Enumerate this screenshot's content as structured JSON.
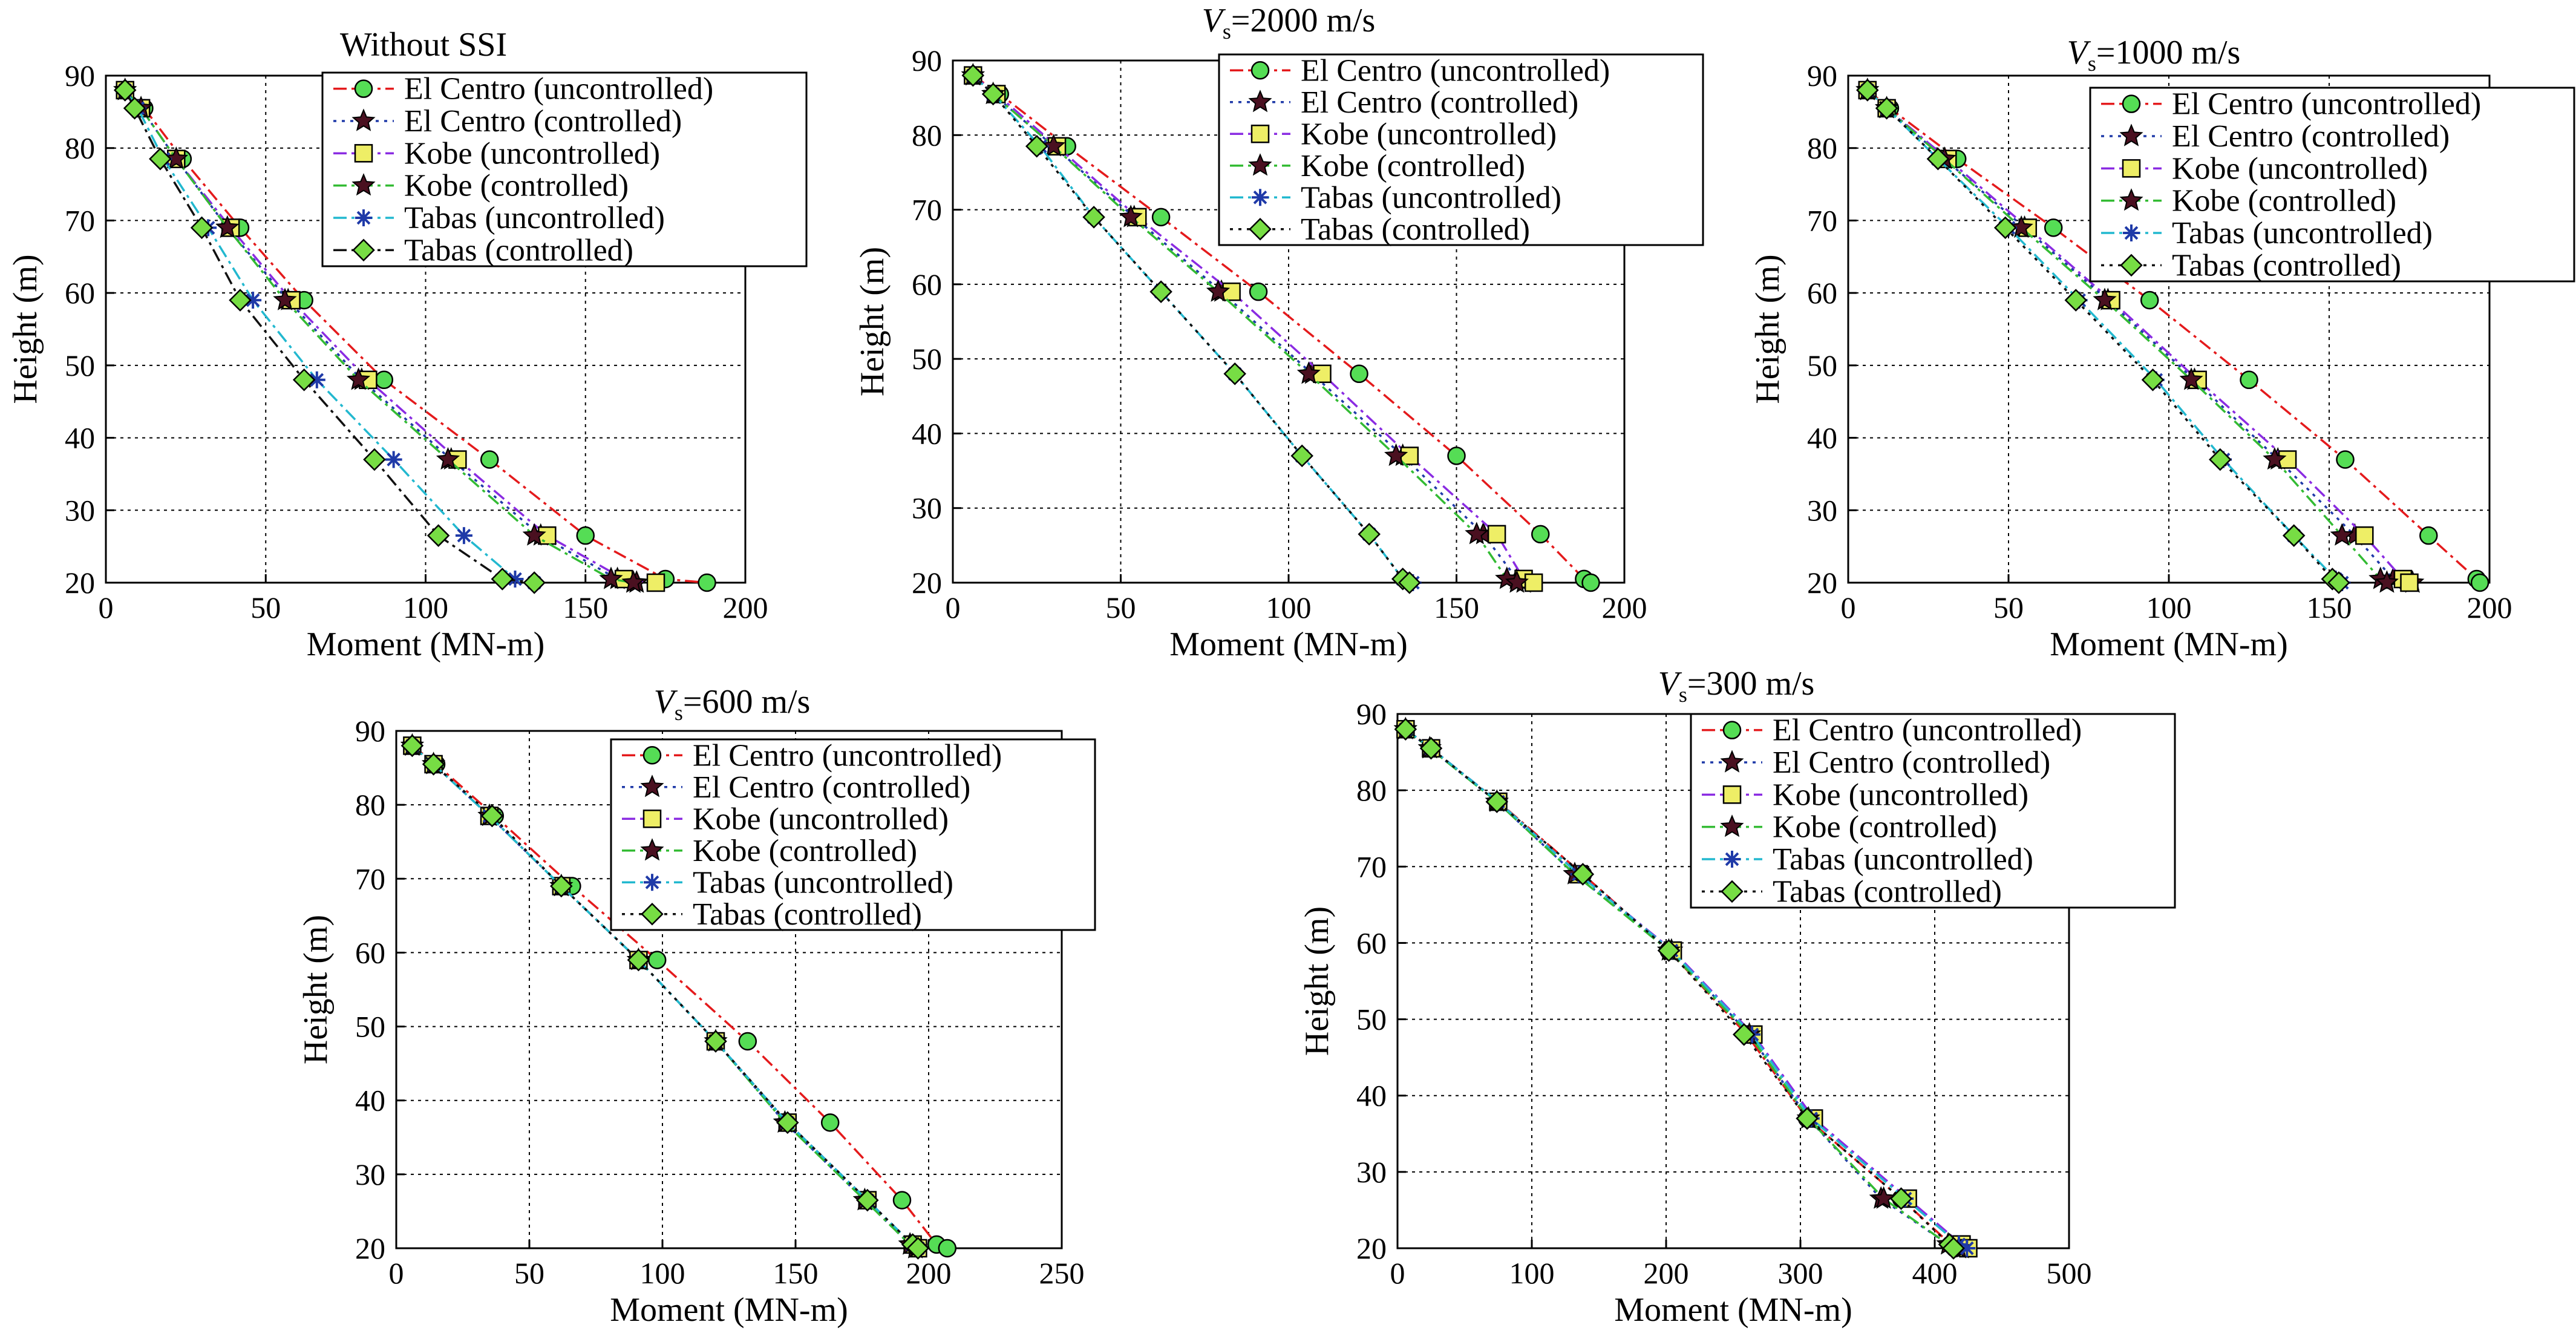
{
  "colors": {
    "el_centro_uncontrolled": "#e41a1c",
    "el_centro_controlled": "#1f3aa8",
    "kobe_uncontrolled": "#8a2be2",
    "kobe_controlled": "#33bb33",
    "tabas_uncontrolled": "#22b8cf",
    "tabas_controlled": "#111111",
    "marker_circle": "#55dd55",
    "marker_square": "#eeee66",
    "marker_star": "#4a1020",
    "marker_diamond": "#77dd44"
  },
  "chart_data": [
    {
      "type": "line",
      "title": "Without SSI",
      "title_prefix": "",
      "title_subscript": "",
      "xlabel": "Moment (MN-m)",
      "ylabel": "Height (m)",
      "xlim": [
        0,
        200
      ],
      "ylim": [
        20,
        90
      ],
      "xticks": [
        0,
        50,
        100,
        150,
        200
      ],
      "yticks": [
        20,
        30,
        40,
        50,
        60,
        70,
        80,
        90
      ],
      "grid": true,
      "legend_position": "top-right",
      "series": [
        {
          "name": "El Centro (uncontrolled)",
          "marker": "circle",
          "style": "dash-dot",
          "x": [
            6,
            12,
            24,
            42,
            62,
            87,
            120,
            150,
            175,
            188
          ],
          "y": [
            88,
            85.5,
            78.5,
            69,
            59,
            48,
            37,
            26.5,
            20.5,
            20
          ]
        },
        {
          "name": "El Centro (controlled)",
          "marker": "star",
          "style": "dotted",
          "x": [
            6,
            11,
            22,
            38,
            57,
            80,
            108,
            136,
            160,
            166
          ],
          "y": [
            88,
            85.5,
            78.5,
            69,
            59,
            48,
            37,
            26.5,
            20.5,
            20
          ]
        },
        {
          "name": "Kobe (uncontrolled)",
          "marker": "square",
          "style": "dash-dot",
          "x": [
            6,
            11,
            22,
            39,
            58,
            82,
            110,
            138,
            162,
            172
          ],
          "y": [
            88,
            85.5,
            78.5,
            69,
            59,
            48,
            37,
            26.5,
            20.5,
            20
          ]
        },
        {
          "name": "Kobe (controlled)",
          "marker": "star",
          "style": "dash-dot",
          "x": [
            6,
            11,
            22,
            38,
            56,
            79,
            107,
            134,
            158,
            165
          ],
          "y": [
            88,
            85.5,
            78.5,
            69,
            59,
            48,
            37,
            26.5,
            20.5,
            20
          ]
        },
        {
          "name": "Tabas (uncontrolled)",
          "marker": "asterisk",
          "style": "dash-dot",
          "x": [
            6,
            10,
            18,
            32,
            46,
            66,
            90,
            112,
            128,
            134
          ],
          "y": [
            88,
            85.5,
            78.5,
            69,
            59,
            48,
            37,
            26.5,
            20.5,
            20
          ]
        },
        {
          "name": "Tabas (controlled)",
          "marker": "diamond",
          "style": "dash-dot",
          "x": [
            6,
            9,
            17,
            30,
            42,
            62,
            84,
            104,
            124,
            134
          ],
          "y": [
            88,
            85.5,
            78.5,
            69,
            59,
            48,
            37,
            26.5,
            20.5,
            20
          ]
        }
      ]
    },
    {
      "type": "line",
      "title": "=2000 m/s",
      "title_prefix": "V",
      "title_subscript": "s",
      "xlabel": "Moment (MN-m)",
      "ylabel": "Height (m)",
      "xlim": [
        0,
        200
      ],
      "ylim": [
        20,
        90
      ],
      "xticks": [
        0,
        50,
        100,
        150,
        200
      ],
      "yticks": [
        20,
        30,
        40,
        50,
        60,
        70,
        80,
        90
      ],
      "grid": true,
      "legend_position": "top-right",
      "series": [
        {
          "name": "El Centro (uncontrolled)",
          "marker": "circle",
          "style": "dash-dot",
          "x": [
            6,
            14,
            34,
            62,
            91,
            121,
            150,
            175,
            188,
            190
          ],
          "y": [
            88,
            85.5,
            78.5,
            69,
            59,
            48,
            37,
            26.5,
            20.5,
            20
          ]
        },
        {
          "name": "El Centro (controlled)",
          "marker": "star",
          "style": "dotted",
          "x": [
            6,
            12,
            30,
            54,
            80,
            107,
            134,
            158,
            168,
            170
          ],
          "y": [
            88,
            85.5,
            78.5,
            69,
            59,
            48,
            37,
            26.5,
            20.5,
            20
          ]
        },
        {
          "name": "Kobe (uncontrolled)",
          "marker": "square",
          "style": "dash-dot",
          "x": [
            6,
            13,
            31,
            55,
            83,
            110,
            136,
            162,
            170,
            173
          ],
          "y": [
            88,
            85.5,
            78.5,
            69,
            59,
            48,
            37,
            26.5,
            20.5,
            20
          ]
        },
        {
          "name": "Kobe (controlled)",
          "marker": "star",
          "style": "dash-dot",
          "x": [
            6,
            12,
            30,
            53,
            79,
            106,
            132,
            156,
            165,
            168
          ],
          "y": [
            88,
            85.5,
            78.5,
            69,
            59,
            48,
            37,
            26.5,
            20.5,
            20
          ]
        },
        {
          "name": "Tabas (uncontrolled)",
          "marker": "asterisk",
          "style": "dash-dot",
          "x": [
            6,
            12,
            26,
            42,
            62,
            84,
            104,
            124,
            134,
            137
          ],
          "y": [
            88,
            85.5,
            78.5,
            69,
            59,
            48,
            37,
            26.5,
            20.5,
            20
          ]
        },
        {
          "name": "Tabas (controlled)",
          "marker": "diamond",
          "style": "dotted",
          "x": [
            6,
            12,
            25,
            42,
            62,
            84,
            104,
            124,
            134,
            136
          ],
          "y": [
            88,
            85.5,
            78.5,
            69,
            59,
            48,
            37,
            26.5,
            20.5,
            20
          ]
        }
      ]
    },
    {
      "type": "line",
      "title": "=1000 m/s",
      "title_prefix": "V",
      "title_subscript": "s",
      "xlabel": "Moment (MN-m)",
      "ylabel": "Height (m)",
      "xlim": [
        0,
        200
      ],
      "ylim": [
        20,
        90
      ],
      "xticks": [
        0,
        50,
        100,
        150,
        200
      ],
      "yticks": [
        20,
        30,
        40,
        50,
        60,
        70,
        80,
        90
      ],
      "grid": true,
      "legend_position": "top-right",
      "series": [
        {
          "name": "El Centro (uncontrolled)",
          "marker": "circle",
          "style": "dash-dot",
          "x": [
            6,
            13,
            34,
            64,
            94,
            125,
            155,
            181,
            196,
            197
          ],
          "y": [
            88,
            85.5,
            78.5,
            69,
            59,
            48,
            37,
            26.5,
            20.5,
            20
          ]
        },
        {
          "name": "El Centro (controlled)",
          "marker": "star",
          "style": "dotted",
          "x": [
            6,
            12,
            30,
            55,
            81,
            108,
            134,
            158,
            170,
            176
          ],
          "y": [
            88,
            85.5,
            78.5,
            69,
            59,
            48,
            37,
            26.5,
            20.5,
            20
          ]
        },
        {
          "name": "Kobe (uncontrolled)",
          "marker": "square",
          "style": "dash-dot",
          "x": [
            6,
            12,
            31,
            56,
            82,
            109,
            137,
            161,
            173,
            175
          ],
          "y": [
            88,
            85.5,
            78.5,
            69,
            59,
            48,
            37,
            26.5,
            20.5,
            20
          ]
        },
        {
          "name": "Kobe (controlled)",
          "marker": "star",
          "style": "dash-dot",
          "x": [
            6,
            12,
            30,
            54,
            80,
            107,
            133,
            154,
            166,
            168
          ],
          "y": [
            88,
            85.5,
            78.5,
            69,
            59,
            48,
            37,
            26.5,
            20.5,
            20
          ]
        },
        {
          "name": "Tabas (uncontrolled)",
          "marker": "asterisk",
          "style": "dash-dot",
          "x": [
            6,
            12,
            28,
            50,
            72,
            96,
            117,
            139,
            152,
            154
          ],
          "y": [
            88,
            85.5,
            78.5,
            69,
            59,
            48,
            37,
            26.5,
            20.5,
            20
          ]
        },
        {
          "name": "Tabas (controlled)",
          "marker": "diamond",
          "style": "dotted",
          "x": [
            6,
            12,
            28,
            49,
            71,
            95,
            116,
            139,
            151,
            153
          ],
          "y": [
            88,
            85.5,
            78.5,
            69,
            59,
            48,
            37,
            26.5,
            20.5,
            20
          ]
        }
      ]
    },
    {
      "type": "line",
      "title": "=600 m/s",
      "title_prefix": "V",
      "title_subscript": "s",
      "xlabel": "Moment (MN-m)",
      "ylabel": "Height (m)",
      "xlim": [
        0,
        250
      ],
      "ylim": [
        20,
        90
      ],
      "xticks": [
        0,
        50,
        100,
        150,
        200,
        250
      ],
      "yticks": [
        20,
        30,
        40,
        50,
        60,
        70,
        80,
        90
      ],
      "grid": true,
      "legend_position": "top-right",
      "series": [
        {
          "name": "El Centro (uncontrolled)",
          "marker": "circle",
          "style": "dash-dot",
          "x": [
            6,
            15,
            37,
            66,
            98,
            132,
            163,
            190,
            203,
            207
          ],
          "y": [
            88,
            85.5,
            78.5,
            69,
            59,
            48,
            37,
            26.5,
            20.5,
            20
          ]
        },
        {
          "name": "El Centro (controlled)",
          "marker": "star",
          "style": "dotted",
          "x": [
            6,
            14,
            35,
            62,
            91,
            120,
            146,
            176,
            193,
            195
          ],
          "y": [
            88,
            85.5,
            78.5,
            69,
            59,
            48,
            37,
            26.5,
            20.5,
            20
          ]
        },
        {
          "name": "Kobe (uncontrolled)",
          "marker": "square",
          "style": "dash-dot",
          "x": [
            6,
            14,
            35,
            62,
            91,
            120,
            147,
            177,
            194,
            196
          ],
          "y": [
            88,
            85.5,
            78.5,
            69,
            59,
            48,
            37,
            26.5,
            20.5,
            20
          ]
        },
        {
          "name": "Kobe (controlled)",
          "marker": "star",
          "style": "dash-dot",
          "x": [
            6,
            14,
            35,
            62,
            91,
            120,
            146,
            176,
            193,
            195
          ],
          "y": [
            88,
            85.5,
            78.5,
            69,
            59,
            48,
            37,
            26.5,
            20.5,
            20
          ]
        },
        {
          "name": "Tabas (uncontrolled)",
          "marker": "asterisk",
          "style": "dash-dot",
          "x": [
            6,
            14,
            35,
            62,
            91,
            120,
            147,
            177,
            194,
            196
          ],
          "y": [
            88,
            85.5,
            78.5,
            69,
            59,
            48,
            37,
            26.5,
            20.5,
            20
          ]
        },
        {
          "name": "Tabas (controlled)",
          "marker": "diamond",
          "style": "dotted",
          "x": [
            6,
            14,
            36,
            62,
            91,
            120,
            147,
            177,
            194,
            196
          ],
          "y": [
            88,
            85.5,
            78.5,
            69,
            59,
            48,
            37,
            26.5,
            20.5,
            20
          ]
        }
      ]
    },
    {
      "type": "line",
      "title": "=300 m/s",
      "title_prefix": "V",
      "title_subscript": "s",
      "xlabel": "Moment (MN-m)",
      "ylabel": "Height (m)",
      "xlim": [
        0,
        500
      ],
      "ylim": [
        20,
        90
      ],
      "xticks": [
        0,
        100,
        200,
        300,
        400,
        500
      ],
      "yticks": [
        20,
        30,
        40,
        50,
        60,
        70,
        80,
        90
      ],
      "grid": true,
      "legend_position": "top-right",
      "series": [
        {
          "name": "El Centro (uncontrolled)",
          "marker": "circle",
          "style": "dash-dot",
          "x": [
            6,
            25,
            75,
            138,
            202,
            260,
            305,
            375,
            412,
            415
          ],
          "y": [
            88,
            85.5,
            78.5,
            69,
            59,
            48,
            37,
            26.5,
            20.5,
            20
          ]
        },
        {
          "name": "El Centro (controlled)",
          "marker": "star",
          "style": "dotted",
          "x": [
            6,
            24,
            74,
            132,
            204,
            262,
            306,
            360,
            410,
            420
          ],
          "y": [
            88,
            85.5,
            78.5,
            69,
            59,
            48,
            37,
            26.5,
            20.5,
            20
          ]
        },
        {
          "name": "Kobe (uncontrolled)",
          "marker": "square",
          "style": "dash-dot",
          "x": [
            6,
            25,
            75,
            135,
            205,
            265,
            310,
            380,
            420,
            425
          ],
          "y": [
            88,
            85.5,
            78.5,
            69,
            59,
            48,
            37,
            26.5,
            20.5,
            20
          ]
        },
        {
          "name": "Kobe (controlled)",
          "marker": "star",
          "style": "dash-dot",
          "x": [
            6,
            24,
            74,
            132,
            202,
            262,
            306,
            362,
            410,
            418
          ],
          "y": [
            88,
            85.5,
            78.5,
            69,
            59,
            48,
            37,
            26.5,
            20.5,
            20
          ]
        },
        {
          "name": "Tabas (uncontrolled)",
          "marker": "asterisk",
          "style": "dash-dot",
          "x": [
            6,
            25,
            75,
            135,
            204,
            264,
            308,
            378,
            418,
            424
          ],
          "y": [
            88,
            85.5,
            78.5,
            69,
            59,
            48,
            37,
            26.5,
            20.5,
            20
          ]
        },
        {
          "name": "Tabas (controlled)",
          "marker": "diamond",
          "style": "dotted",
          "x": [
            6,
            25,
            74,
            138,
            202,
            258,
            305,
            375,
            411,
            414
          ],
          "y": [
            88,
            85.5,
            78.5,
            69,
            59,
            48,
            37,
            26.5,
            20.5,
            20
          ]
        }
      ]
    }
  ]
}
